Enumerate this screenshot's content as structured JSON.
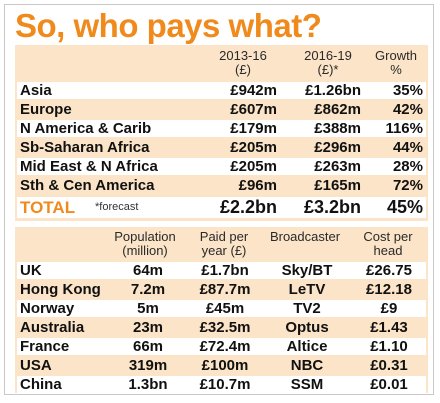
{
  "title": "So, who pays what?",
  "regions": {
    "headers": {
      "period1_line1": "2013-16",
      "period1_line2": "(£)",
      "period2_line1": "2016-19",
      "period2_line2": "(£)*",
      "growth_line1": "Growth",
      "growth_line2": "%"
    },
    "rows": [
      {
        "name": "Asia",
        "p1": "£942m",
        "p2": "£1.26bn",
        "growth": "35%"
      },
      {
        "name": "Europe",
        "p1": "£607m",
        "p2": "£862m",
        "growth": "42%"
      },
      {
        "name": "N America & Carib",
        "p1": "£179m",
        "p2": "£388m",
        "growth": "116%"
      },
      {
        "name": "Sb-Saharan Africa",
        "p1": "£205m",
        "p2": "£296m",
        "growth": "44%"
      },
      {
        "name": "Mid East & N Africa",
        "p1": "£205m",
        "p2": "£263m",
        "growth": "28%"
      },
      {
        "name": "Sth & Cen America",
        "p1": "£96m",
        "p2": "£165m",
        "growth": "72%"
      }
    ],
    "total": {
      "label": "TOTAL",
      "note": "*forecast",
      "p1": "£2.2bn",
      "p2": "£3.2bn",
      "growth": "45%"
    }
  },
  "countries": {
    "headers": {
      "population_line1": "Population",
      "population_line2": "(million)",
      "paid_line1": "Paid per",
      "paid_line2": "year (£)",
      "broadcaster": "Broadcaster",
      "cost_line1": "Cost per",
      "cost_line2": "head"
    },
    "rows": [
      {
        "name": "UK",
        "population": "64m",
        "paid": "£1.7bn",
        "broadcaster": "Sky/BT",
        "cost": "£26.75"
      },
      {
        "name": "Hong Kong",
        "population": "7.2m",
        "paid": "£87.7m",
        "broadcaster": "LeTV",
        "cost": "£12.18"
      },
      {
        "name": "Norway",
        "population": "5m",
        "paid": "£45m",
        "broadcaster": "TV2",
        "cost": "£9"
      },
      {
        "name": "Australia",
        "population": "23m",
        "paid": "£32.5m",
        "broadcaster": "Optus",
        "cost": "£1.43"
      },
      {
        "name": "France",
        "population": "66m",
        "paid": "£72.4m",
        "broadcaster": "Altice",
        "cost": "£1.10"
      },
      {
        "name": "USA",
        "population": "319m",
        "paid": "£100m",
        "broadcaster": "NBC",
        "cost": "£0.31"
      },
      {
        "name": "China",
        "population": "1.3bn",
        "paid": "£10.7m",
        "broadcaster": "SSM",
        "cost": "£0.01"
      }
    ]
  },
  "colors": {
    "accent": "#f08a1c",
    "panel": "#fbe4c7"
  }
}
